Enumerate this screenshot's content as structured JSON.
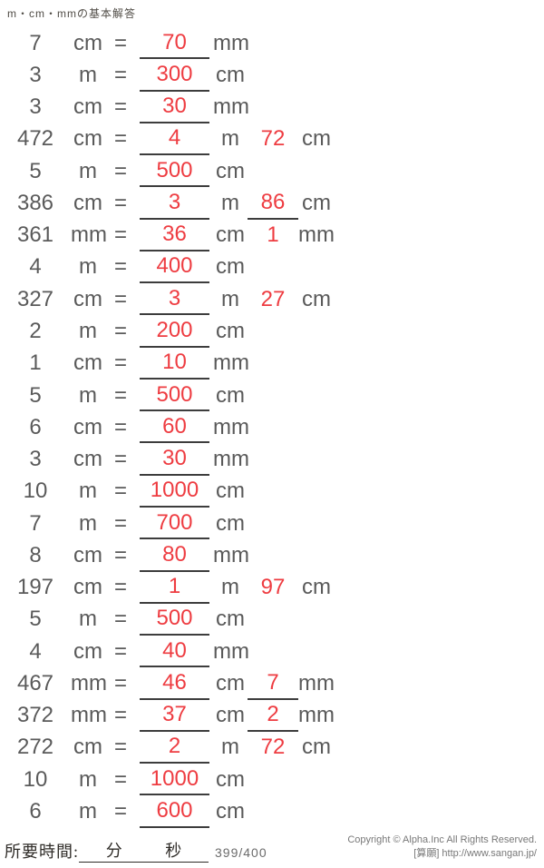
{
  "header": {
    "title": "m・cm・mmの基本解答"
  },
  "colors": {
    "answer_red": "#ee3c41",
    "text_gray": "#5a5a5a",
    "blank_line": "#3d3d3d"
  },
  "rows": [
    {
      "value": "7",
      "unit": "cm",
      "equals": "=",
      "answer1": "70",
      "unit1": "mm"
    },
    {
      "value": "3",
      "unit": "m",
      "equals": "=",
      "answer1": "300",
      "unit1": "cm"
    },
    {
      "value": "3",
      "unit": "cm",
      "equals": "=",
      "answer1": "30",
      "unit1": "mm"
    },
    {
      "value": "472",
      "unit": "cm",
      "equals": "=",
      "answer1": "4",
      "unit1": "m",
      "answer2": "72",
      "unit2": "cm",
      "answer2_underlined": false
    },
    {
      "value": "5",
      "unit": "m",
      "equals": "=",
      "answer1": "500",
      "unit1": "cm"
    },
    {
      "value": "386",
      "unit": "cm",
      "equals": "=",
      "answer1": "3",
      "unit1": "m",
      "answer2": "86",
      "unit2": "cm",
      "answer2_underlined": true
    },
    {
      "value": "361",
      "unit": "mm",
      "equals": "=",
      "answer1": "36",
      "unit1": "cm",
      "answer2": "1",
      "unit2": "mm",
      "answer2_underlined": false
    },
    {
      "value": "4",
      "unit": "m",
      "equals": "=",
      "answer1": "400",
      "unit1": "cm"
    },
    {
      "value": "327",
      "unit": "cm",
      "equals": "=",
      "answer1": "3",
      "unit1": "m",
      "answer2": "27",
      "unit2": "cm",
      "answer2_underlined": false
    },
    {
      "value": "2",
      "unit": "m",
      "equals": "=",
      "answer1": "200",
      "unit1": "cm"
    },
    {
      "value": "1",
      "unit": "cm",
      "equals": "=",
      "answer1": "10",
      "unit1": "mm"
    },
    {
      "value": "5",
      "unit": "m",
      "equals": "=",
      "answer1": "500",
      "unit1": "cm"
    },
    {
      "value": "6",
      "unit": "cm",
      "equals": "=",
      "answer1": "60",
      "unit1": "mm"
    },
    {
      "value": "3",
      "unit": "cm",
      "equals": "=",
      "answer1": "30",
      "unit1": "mm"
    },
    {
      "value": "10",
      "unit": "m",
      "equals": "=",
      "answer1": "1000",
      "unit1": "cm"
    },
    {
      "value": "7",
      "unit": "m",
      "equals": "=",
      "answer1": "700",
      "unit1": "cm"
    },
    {
      "value": "8",
      "unit": "cm",
      "equals": "=",
      "answer1": "80",
      "unit1": "mm"
    },
    {
      "value": "197",
      "unit": "cm",
      "equals": "=",
      "answer1": "1",
      "unit1": "m",
      "answer2": "97",
      "unit2": "cm",
      "answer2_underlined": false
    },
    {
      "value": "5",
      "unit": "m",
      "equals": "=",
      "answer1": "500",
      "unit1": "cm"
    },
    {
      "value": "4",
      "unit": "cm",
      "equals": "=",
      "answer1": "40",
      "unit1": "mm"
    },
    {
      "value": "467",
      "unit": "mm",
      "equals": "=",
      "answer1": "46",
      "unit1": "cm",
      "answer2": "7",
      "unit2": "mm",
      "answer2_underlined": true
    },
    {
      "value": "372",
      "unit": "mm",
      "equals": "=",
      "answer1": "37",
      "unit1": "cm",
      "answer2": "2",
      "unit2": "mm",
      "answer2_underlined": true
    },
    {
      "value": "272",
      "unit": "cm",
      "equals": "=",
      "answer1": "2",
      "unit1": "m",
      "answer2": "72",
      "unit2": "cm",
      "answer2_underlined": false
    },
    {
      "value": "10",
      "unit": "m",
      "equals": "=",
      "answer1": "1000",
      "unit1": "cm"
    },
    {
      "value": "6",
      "unit": "m",
      "equals": "=",
      "answer1": "600",
      "unit1": "cm"
    }
  ],
  "footer": {
    "time_label": "所要時間:",
    "minutes_label": "分",
    "seconds_label": "秒",
    "page_number": "399/400",
    "copyright_line1": "Copyright © Alpha.Inc All Rights Reserved.",
    "copyright_line2": "[算願] http://www.sangan.jp/"
  }
}
